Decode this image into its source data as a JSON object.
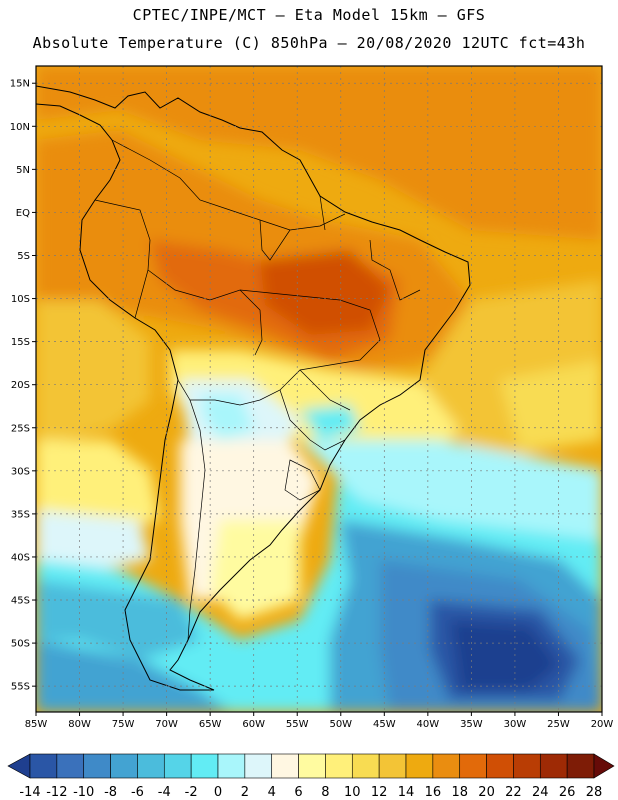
{
  "header": {
    "line1": "CPTEC/INPE/MCT –  Eta Model 15km – GFS",
    "line2": "Absolute Temperature (C) 850hPa – 20/08/2020 12UTC fct=43h"
  },
  "map": {
    "lon_range": [
      -85,
      -20
    ],
    "lat_range": [
      -58,
      17
    ],
    "lon_ticks": [
      "85W",
      "80W",
      "75W",
      "70W",
      "65W",
      "60W",
      "55W",
      "50W",
      "45W",
      "40W",
      "35W",
      "30W",
      "25W",
      "20W"
    ],
    "lat_ticks": [
      "15N",
      "10N",
      "5N",
      "EQ",
      "5S",
      "10S",
      "15S",
      "20S",
      "25S",
      "30S",
      "35S",
      "40S",
      "45S",
      "50S",
      "55S"
    ]
  },
  "colorbar": {
    "labels": [
      "-14",
      "-12",
      "-10",
      "-8",
      "-6",
      "-4",
      "-2",
      "0",
      "2",
      "4",
      "6",
      "8",
      "10",
      "12",
      "14",
      "16",
      "18",
      "20",
      "22",
      "24",
      "26",
      "28"
    ],
    "colors": [
      "#1f3f8f",
      "#2a56a6",
      "#3a71bb",
      "#3f8ac8",
      "#43a3d2",
      "#4bbcdc",
      "#55d4e8",
      "#62ecf4",
      "#a9f6fb",
      "#ddf6fa",
      "#fff7e2",
      "#fffba0",
      "#fff07a",
      "#f8dc52",
      "#f3c436",
      "#eeaa10",
      "#ea8d10",
      "#e26a0a",
      "#d04f05",
      "#b93d04",
      "#9e2a05",
      "#7e1c06",
      "#660b08"
    ]
  }
}
